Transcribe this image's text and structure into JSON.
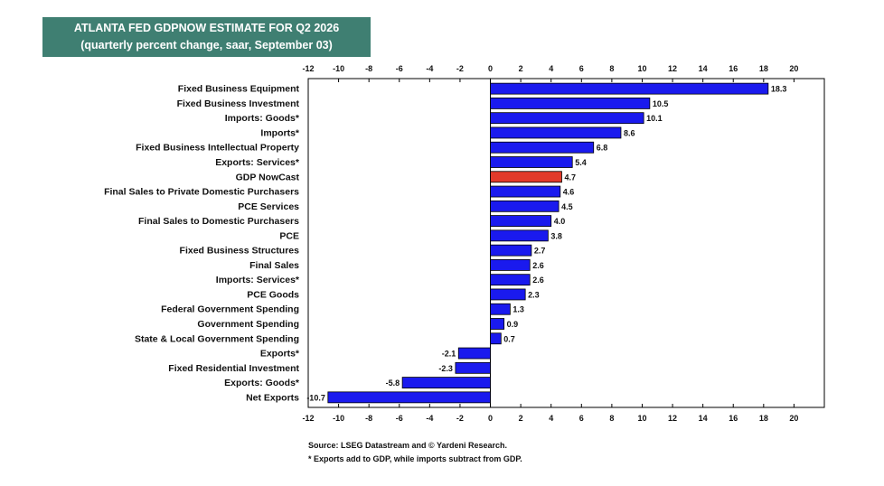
{
  "header": {
    "title": "ATLANTA FED GDPNOW ESTIMATE FOR Q2 2026",
    "subtitle": "(quarterly percent change, saar, September 03)"
  },
  "chart_data": {
    "type": "bar",
    "orientation": "horizontal",
    "title": "ATLANTA FED GDPNOW ESTIMATE FOR Q2 2026",
    "subtitle": "(quarterly percent change, saar, September 03)",
    "xlim": [
      -12,
      22
    ],
    "ticks": [
      -12,
      -10,
      -8,
      -6,
      -4,
      -2,
      0,
      2,
      4,
      6,
      8,
      10,
      12,
      14,
      16,
      18,
      20
    ],
    "grid": false,
    "categories": [
      "Fixed Business Equipment",
      "Fixed Business Investment",
      "Imports: Goods*",
      "Imports*",
      "Fixed Business Intellectual Property",
      "Exports: Services*",
      "GDP NowCast",
      "Final Sales to Private Domestic Purchasers",
      "PCE Services",
      "Final Sales to Domestic Purchasers",
      "PCE",
      "Fixed Business Structures",
      "Final Sales",
      "Imports: Services*",
      "PCE Goods",
      "Federal Government Spending",
      "Government Spending",
      "State & Local Government Spending",
      "Exports*",
      "Fixed Residential Investment",
      "Exports: Goods*",
      "Net Exports"
    ],
    "values": [
      18.3,
      10.5,
      10.1,
      8.6,
      6.8,
      5.4,
      4.7,
      4.6,
      4.5,
      4.0,
      3.8,
      2.7,
      2.6,
      2.6,
      2.3,
      1.3,
      0.9,
      0.7,
      -2.1,
      -2.3,
      -5.8,
      -10.7
    ],
    "value_labels": [
      "18.3",
      "10.5",
      "10.1",
      "8.6",
      "6.8",
      "5.4",
      "4.7",
      "4.6",
      "4.5",
      "4.0",
      "3.8",
      "2.7",
      "2.6",
      "2.6",
      "2.3",
      "1.3",
      "0.9",
      "0.7",
      "-2.1",
      "-2.3",
      "-5.8",
      "-10.7"
    ],
    "highlight_category": "GDP NowCast",
    "colors": {
      "bar": "#1a1aee",
      "highlight": "#e23a2a",
      "header_bg": "#3f7f72"
    }
  },
  "footer": {
    "source": "Source: LSEG Datastream and © Yardeni Research.",
    "note": "* Exports add to GDP, while imports subtract from GDP."
  }
}
